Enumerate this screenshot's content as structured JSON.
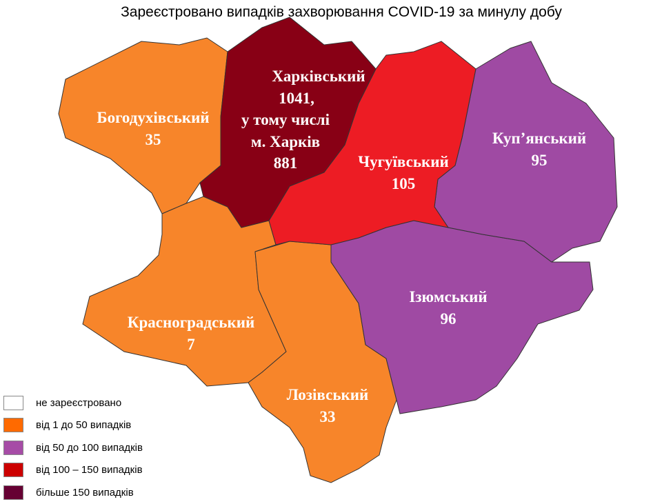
{
  "title": "Зареєстровано випадків захворювання COVID-19 за минулу добу",
  "colors": {
    "none": "#ffffff",
    "low": "#f7852a",
    "mid": "#9f4aa3",
    "high": "#ed1c24",
    "top": "#880015"
  },
  "regions": {
    "bohodukhiv": {
      "name": "Богодухівський",
      "value": "35",
      "category": "low"
    },
    "kharkiv": {
      "name": "Харківський",
      "value": "1041,",
      "line2": "у тому числі",
      "line3": "м. Харків",
      "city_value": "881",
      "category": "top"
    },
    "chuhuiv": {
      "name": "Чугуївський",
      "value": "105",
      "category": "high"
    },
    "kupiansk": {
      "name": "Куп’янський",
      "value": "95",
      "category": "mid"
    },
    "izium": {
      "name": "Ізюмський",
      "value": "96",
      "category": "mid"
    },
    "krasnohrad": {
      "name": "Красноградський",
      "value": "7",
      "category": "low"
    },
    "lozova": {
      "name": "Лозівський",
      "value": "33",
      "category": "low"
    }
  },
  "legend": [
    {
      "label": "не зареєстровано",
      "color": "#ffffff"
    },
    {
      "label": "від 1 до 50  випадків",
      "color": "#ff6a00"
    },
    {
      "label": "від 50 до 100  випадків",
      "color": "#a64ca6"
    },
    {
      "label": "від 100 – 150  випадків",
      "color": "#cc0000"
    },
    {
      "label": "більше 150  випадків",
      "color": "#660033"
    }
  ]
}
